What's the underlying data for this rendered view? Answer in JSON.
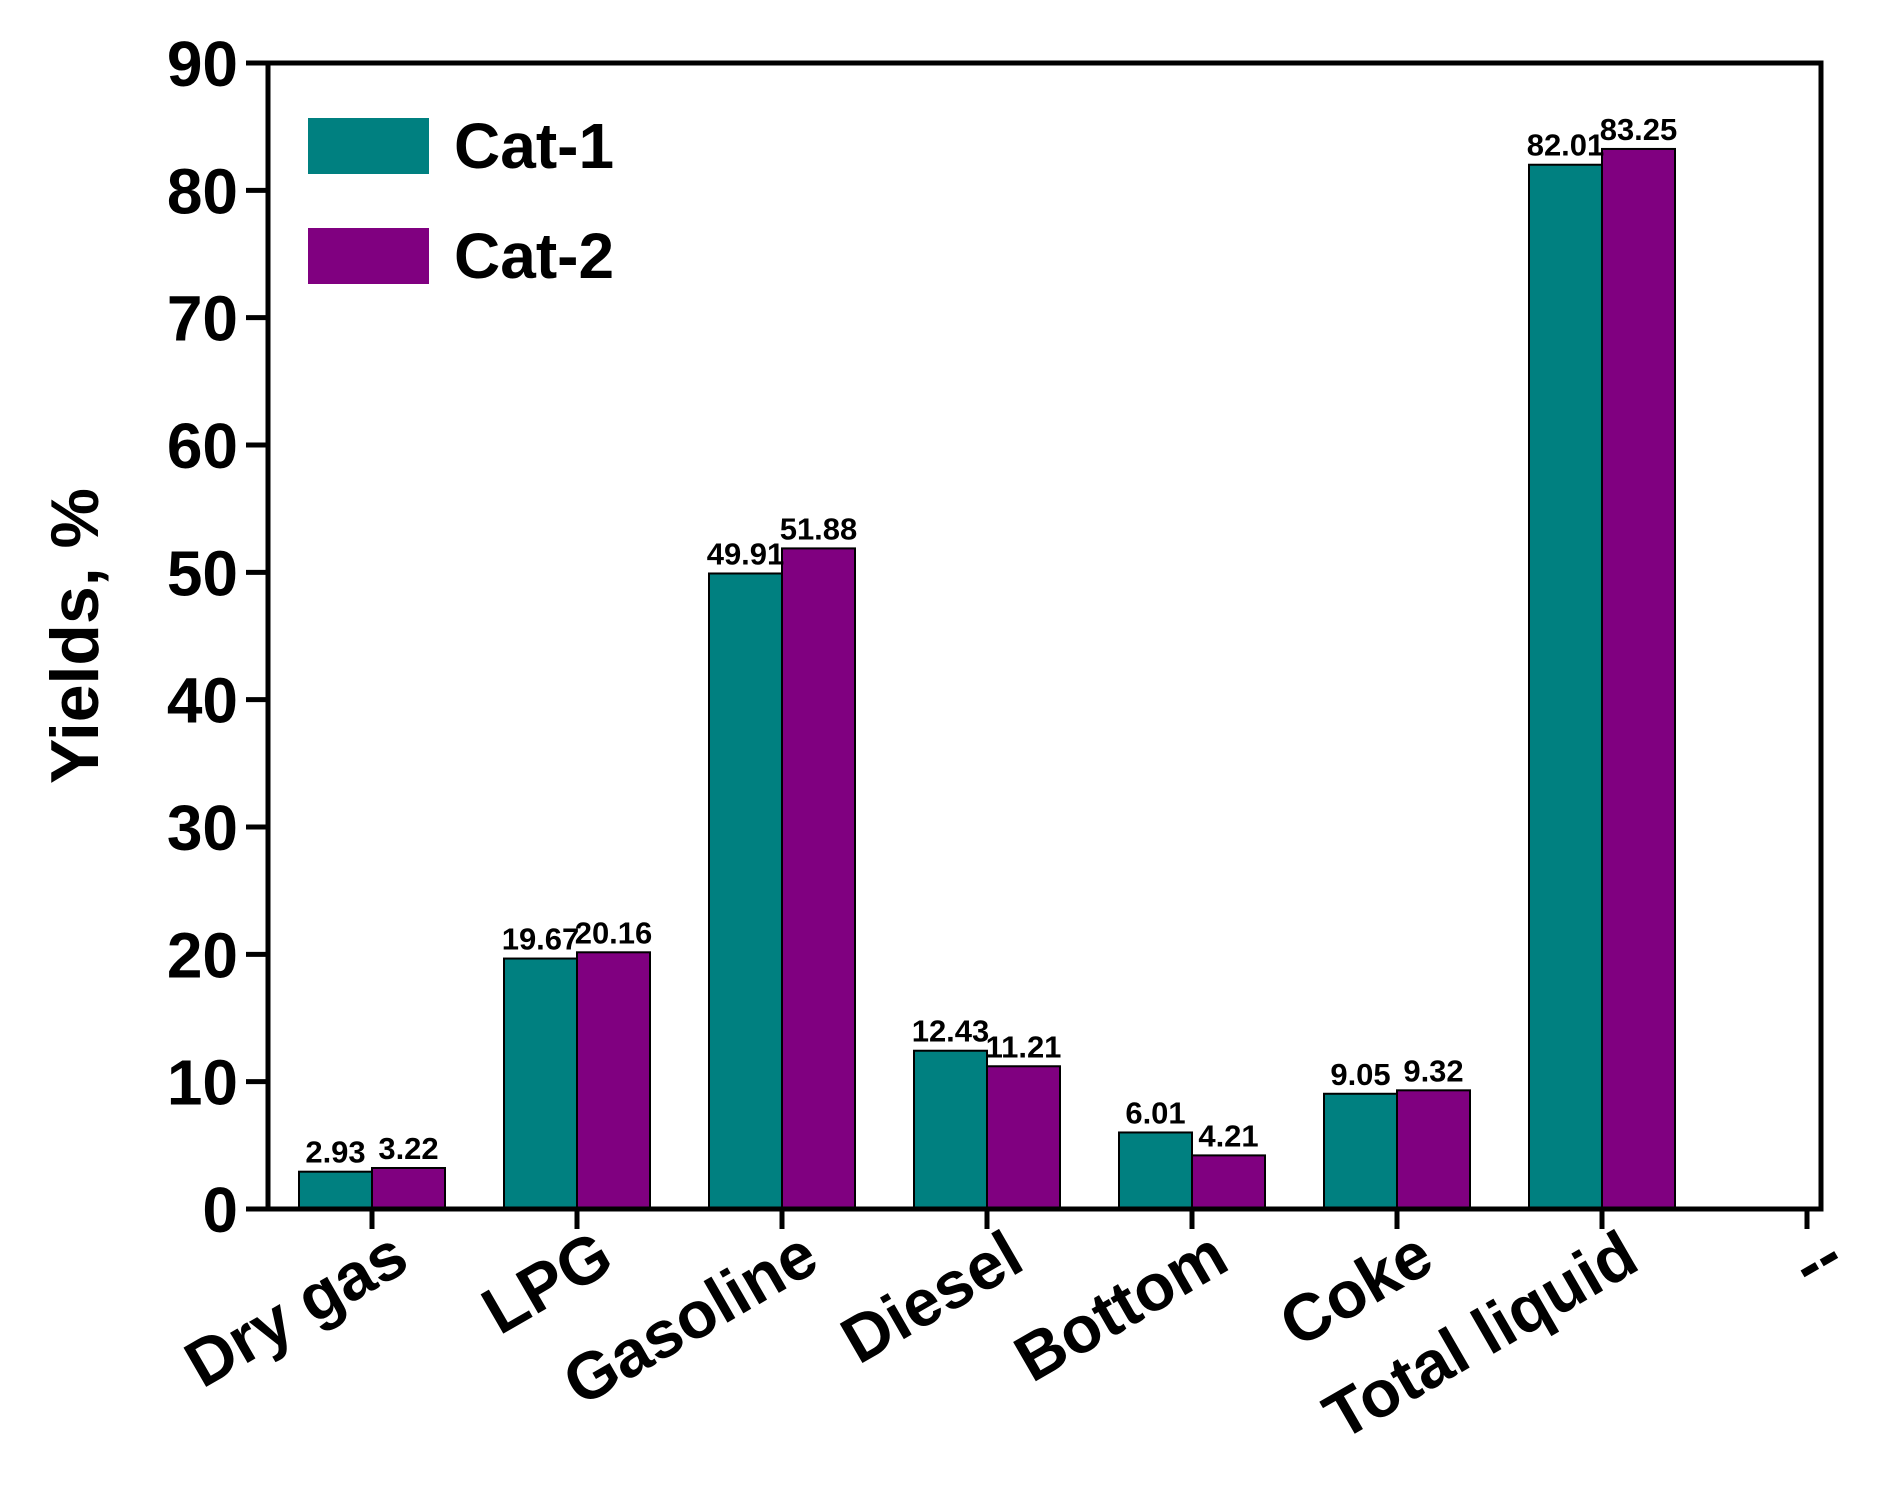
{
  "chart_data": {
    "type": "bar",
    "title": "",
    "xlabel": "",
    "ylabel": "Yields, %",
    "ylim": [
      0,
      90
    ],
    "yticks": [
      0,
      10,
      20,
      30,
      40,
      50,
      60,
      70,
      80,
      90
    ],
    "categories": [
      "Dry gas",
      "LPG",
      "Gasoline",
      "Diesel",
      "Bottom",
      "Coke",
      "Total liquid",
      "--"
    ],
    "series": [
      {
        "name": "Cat-1",
        "color": "#008080",
        "values": [
          2.93,
          19.67,
          49.91,
          12.43,
          6.01,
          9.05,
          82.01,
          null
        ],
        "labels": [
          "2.93",
          "19.67",
          "49.91",
          "12.43",
          "6.01",
          "9.05",
          "82.01",
          ""
        ]
      },
      {
        "name": "Cat-2",
        "color": "#800080",
        "values": [
          3.22,
          20.16,
          51.88,
          11.21,
          4.21,
          9.32,
          83.25,
          null
        ],
        "labels": [
          "3.22",
          "20.16",
          "51.88",
          "11.21",
          "4.21",
          "9.32",
          "83.25",
          ""
        ]
      }
    ],
    "legend": "top-left",
    "grid": false
  }
}
